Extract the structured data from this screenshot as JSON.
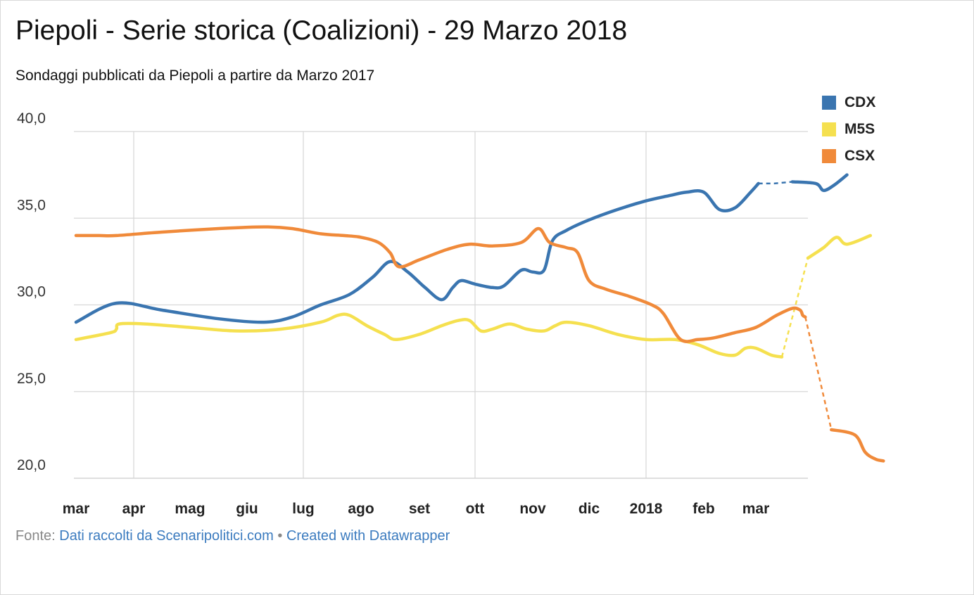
{
  "title": "Piepoli - Serie storica (Coalizioni) - 29 Marzo 2018",
  "subtitle": "Sondaggi pubblicati da Piepoli a partire da Marzo 2017",
  "footer": {
    "source_prefix": "Fonte:",
    "source_link": "Dati raccolti da Scenaripolitici.com",
    "separator": "•",
    "created_link": "Created with Datawrapper"
  },
  "chart_data": {
    "type": "line",
    "y_ticks": [
      20,
      25,
      30,
      35,
      40
    ],
    "y_tick_labels": [
      "20,0",
      "25,0",
      "30,0",
      "35,0",
      "40,0"
    ],
    "ylim": [
      20,
      40
    ],
    "x_months": [
      "mar",
      "apr",
      "mag",
      "giu",
      "lug",
      "ago",
      "set",
      "ott",
      "nov",
      "dic",
      "2018",
      "feb",
      "mar"
    ],
    "x_gridlines": [
      "apr",
      "lug",
      "ott",
      "2018"
    ],
    "grid": true,
    "legend_position": "top-right",
    "series": [
      {
        "name": "CDX",
        "color": "#3a75b0",
        "points": [
          [
            0.0,
            29.0
          ],
          [
            0.7,
            30.1
          ],
          [
            1.5,
            29.7
          ],
          [
            2.5,
            29.2
          ],
          [
            3.3,
            29.0
          ],
          [
            3.8,
            29.3
          ],
          [
            4.3,
            30.0
          ],
          [
            4.8,
            30.6
          ],
          [
            5.2,
            31.6
          ],
          [
            5.5,
            32.5
          ],
          [
            5.8,
            31.9
          ],
          [
            6.1,
            31.0
          ],
          [
            6.4,
            30.3
          ],
          [
            6.6,
            31.0
          ],
          [
            6.75,
            31.4
          ],
          [
            7.0,
            31.2
          ],
          [
            7.3,
            31.0
          ],
          [
            7.5,
            31.1
          ],
          [
            7.8,
            32.0
          ],
          [
            8.0,
            31.9
          ],
          [
            8.2,
            32.0
          ],
          [
            8.35,
            33.7
          ],
          [
            8.6,
            34.3
          ],
          [
            9.0,
            34.9
          ],
          [
            9.5,
            35.5
          ],
          [
            10.0,
            36.0
          ],
          [
            10.4,
            36.3
          ],
          [
            10.7,
            36.5
          ],
          [
            11.0,
            36.5
          ],
          [
            11.3,
            35.5
          ],
          [
            11.6,
            35.6
          ],
          [
            11.9,
            36.5
          ],
          [
            12.05,
            37.0
          ]
        ],
        "dashed_points": [
          [
            12.05,
            37.0
          ],
          [
            12.35,
            37.0
          ],
          [
            12.7,
            37.1
          ]
        ],
        "points_after": [
          [
            12.7,
            37.1
          ],
          [
            13.15,
            37.0
          ],
          [
            13.3,
            36.6
          ],
          [
            13.5,
            36.9
          ],
          [
            13.75,
            37.5
          ]
        ]
      },
      {
        "name": "M5S",
        "color": "#f5e04f",
        "points": [
          [
            0.0,
            28.0
          ],
          [
            0.6,
            28.4
          ],
          [
            0.7,
            28.6
          ],
          [
            0.75,
            28.9
          ],
          [
            1.2,
            28.9
          ],
          [
            2.0,
            28.7
          ],
          [
            2.8,
            28.5
          ],
          [
            3.6,
            28.6
          ],
          [
            4.3,
            29.0
          ],
          [
            4.6,
            29.4
          ],
          [
            4.8,
            29.4
          ],
          [
            5.1,
            28.8
          ],
          [
            5.4,
            28.3
          ],
          [
            5.6,
            28.0
          ],
          [
            6.0,
            28.3
          ],
          [
            6.4,
            28.8
          ],
          [
            6.7,
            29.1
          ],
          [
            6.9,
            29.1
          ],
          [
            7.1,
            28.5
          ],
          [
            7.3,
            28.6
          ],
          [
            7.6,
            28.9
          ],
          [
            7.9,
            28.6
          ],
          [
            8.2,
            28.5
          ],
          [
            8.4,
            28.8
          ],
          [
            8.6,
            29.0
          ],
          [
            9.0,
            28.8
          ],
          [
            9.5,
            28.3
          ],
          [
            10.0,
            28.0
          ],
          [
            10.5,
            28.0
          ],
          [
            10.9,
            27.7
          ],
          [
            11.3,
            27.2
          ],
          [
            11.6,
            27.1
          ],
          [
            11.8,
            27.5
          ],
          [
            12.0,
            27.5
          ],
          [
            12.3,
            27.1
          ],
          [
            12.5,
            27.0
          ]
        ],
        "dashed_points": [
          [
            12.5,
            27.0
          ],
          [
            13.0,
            32.7
          ]
        ],
        "points_after": [
          [
            13.0,
            32.7
          ],
          [
            13.3,
            33.3
          ],
          [
            13.55,
            33.9
          ],
          [
            13.75,
            33.5
          ],
          [
            14.2,
            34.0
          ]
        ]
      },
      {
        "name": "CSX",
        "color": "#f08a3a",
        "points": [
          [
            0.0,
            34.0
          ],
          [
            0.4,
            34.0
          ],
          [
            0.7,
            34.0
          ],
          [
            1.5,
            34.2
          ],
          [
            2.5,
            34.4
          ],
          [
            3.3,
            34.5
          ],
          [
            3.8,
            34.4
          ],
          [
            4.3,
            34.1
          ],
          [
            4.7,
            34.0
          ],
          [
            5.0,
            33.9
          ],
          [
            5.3,
            33.6
          ],
          [
            5.5,
            33.0
          ],
          [
            5.65,
            32.2
          ],
          [
            6.0,
            32.6
          ],
          [
            6.5,
            33.2
          ],
          [
            6.9,
            33.5
          ],
          [
            7.3,
            33.4
          ],
          [
            7.8,
            33.6
          ],
          [
            8.1,
            34.4
          ],
          [
            8.3,
            33.6
          ],
          [
            8.6,
            33.3
          ],
          [
            8.8,
            33.0
          ],
          [
            9.0,
            31.4
          ],
          [
            9.3,
            30.9
          ],
          [
            9.7,
            30.5
          ],
          [
            10.1,
            30.0
          ],
          [
            10.3,
            29.5
          ],
          [
            10.6,
            28.0
          ],
          [
            10.9,
            28.0
          ],
          [
            11.2,
            28.1
          ],
          [
            11.6,
            28.4
          ],
          [
            12.0,
            28.7
          ],
          [
            12.4,
            29.4
          ],
          [
            12.7,
            29.8
          ],
          [
            12.85,
            29.7
          ],
          [
            12.9,
            29.4
          ],
          [
            12.95,
            29.3
          ]
        ],
        "dashed_points": [
          [
            12.95,
            29.3
          ],
          [
            13.45,
            22.8
          ]
        ],
        "points_after": [
          [
            13.45,
            22.8
          ],
          [
            13.9,
            22.5
          ],
          [
            14.1,
            21.5
          ],
          [
            14.3,
            21.1
          ],
          [
            14.45,
            21.0
          ]
        ]
      }
    ]
  }
}
